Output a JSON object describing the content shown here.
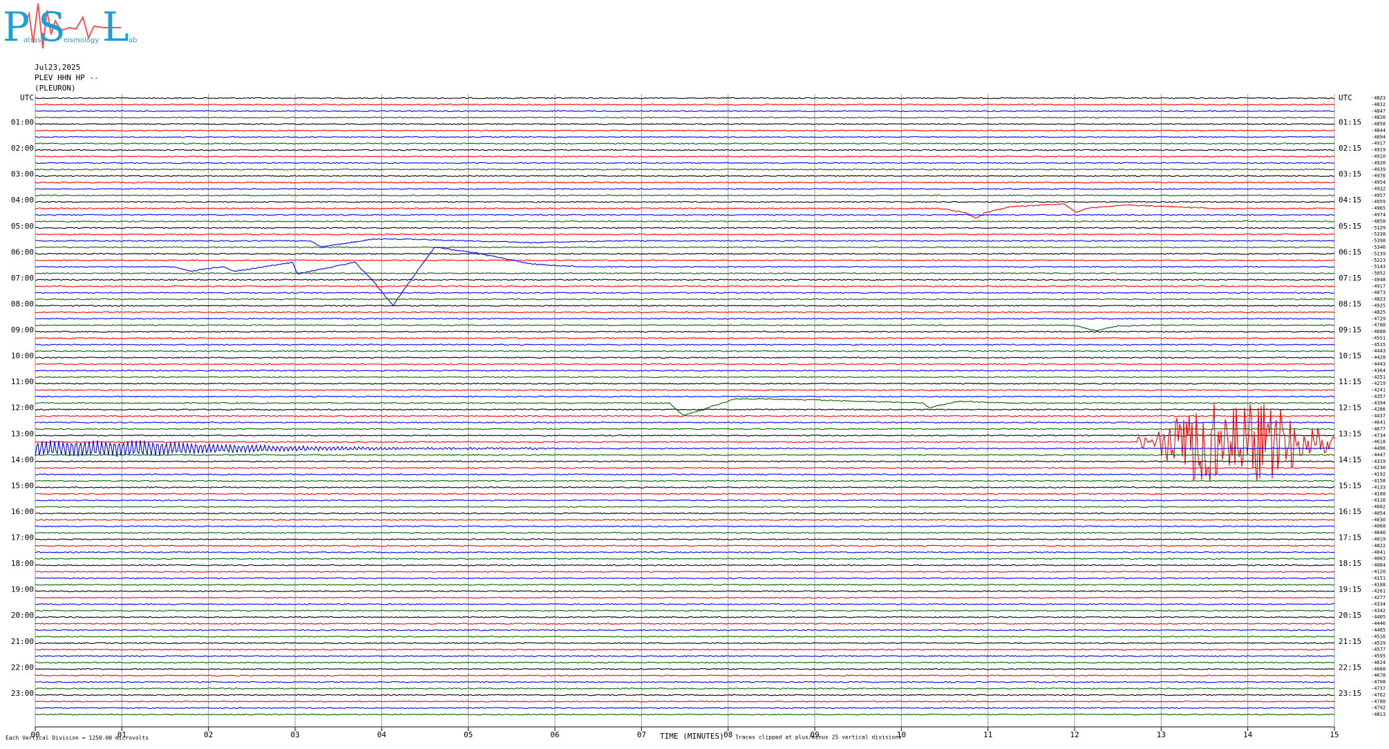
{
  "logo": {
    "letters": [
      "P",
      "S",
      "L"
    ],
    "words": [
      "atras",
      "eismology",
      "ab"
    ]
  },
  "header": {
    "date": "Jul23,2025",
    "station": "PLEV HHN HP --",
    "name": "(PLEURON)"
  },
  "left_labels": [
    "UTC",
    "01:00",
    "02:00",
    "03:00",
    "04:00",
    "05:00",
    "06:00",
    "07:00",
    "08:00",
    "09:00",
    "10:00",
    "11:00",
    "12:00",
    "13:00",
    "14:00",
    "15:00",
    "16:00",
    "17:00",
    "18:00",
    "19:00",
    "20:00",
    "21:00",
    "22:00",
    "23:00"
  ],
  "right_labels": [
    "UTC",
    "01:15",
    "02:15",
    "03:15",
    "04:15",
    "05:15",
    "06:15",
    "07:15",
    "08:15",
    "09:15",
    "10:15",
    "11:15",
    "12:15",
    "13:15",
    "14:15",
    "15:15",
    "16:15",
    "17:15",
    "18:15",
    "19:15",
    "20:15",
    "21:15",
    "22:15",
    "23:15"
  ],
  "trace_offsets": [
    -4823,
    -4832,
    -4847,
    -4826,
    -4858,
    -4844,
    -4894,
    -4917,
    -4919,
    -4910,
    -4920,
    -4939,
    -4976,
    -4954,
    -4932,
    -4957,
    -4959,
    -4965,
    -4974,
    -4858,
    -5129,
    -5338,
    -5398,
    -5346,
    -5239,
    -5223,
    -5143,
    -5052,
    -4948,
    -4917,
    -4873,
    -4823,
    -4925,
    -4825,
    -4729,
    -4788,
    -4688,
    -4551,
    -4515,
    -4443,
    -4428,
    -4443,
    -4364,
    -4251,
    -4219,
    -4241,
    -4357,
    -4394,
    -4286,
    -4437,
    -4641,
    -4677,
    -4734,
    -4618,
    -4496,
    -4447,
    -4319,
    -4230,
    -4192,
    -4158,
    -4133,
    -4108,
    -4116,
    -4082,
    -4054,
    -4030,
    -4068,
    -4040,
    -4019,
    -4022,
    -4041,
    -4063,
    -4084,
    -4120,
    -4151,
    -4188,
    -4261,
    -4277,
    -4334,
    -4342,
    -4405,
    -4446,
    -4465,
    -4516,
    -4529,
    -4577,
    -4595,
    -4624,
    -4668,
    -4678,
    -4708,
    -4737,
    -4762,
    -4780,
    -4792,
    -4813
  ],
  "x_labels": [
    "00",
    "01",
    "02",
    "03",
    "04",
    "05",
    "06",
    "07",
    "08",
    "09",
    "10",
    "11",
    "12",
    "13",
    "14",
    "15"
  ],
  "x_title": "TIME (MINUTES)",
  "scale_note": "Each Vertical Division = 1250.00 microvolts",
  "clip_note": "Traces clipped at plus/minus 25 vertical divisions",
  "trace_colors": [
    "#000000",
    "#ff0000",
    "#0000ff",
    "#006400"
  ]
}
